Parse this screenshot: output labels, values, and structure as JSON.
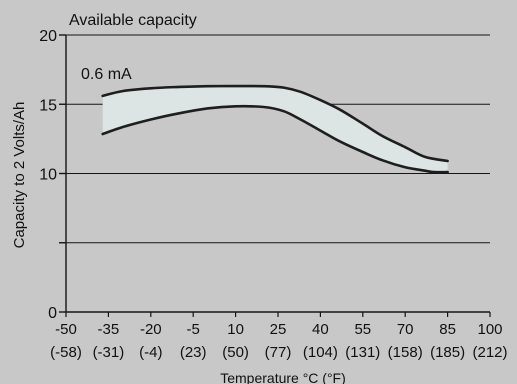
{
  "chart_data": {
    "type": "area",
    "title": "Available capacity",
    "xlabel": "Temperature  °C (°F)",
    "ylabel": "Capacity to 2 Volts/Ah",
    "xlim": [
      -50,
      100
    ],
    "ylim": [
      0,
      20
    ],
    "x_ticks": [
      -50,
      -35,
      -20,
      -5,
      10,
      25,
      40,
      55,
      70,
      85,
      100
    ],
    "x_tick_labels_top": [
      "-50",
      "-35",
      "-20",
      "-5",
      "10",
      "25",
      "40",
      "55",
      "70",
      "85",
      "100"
    ],
    "x_tick_labels_bottom": [
      "(-58)",
      "(-31)",
      "(-4)",
      "(23)",
      "(50)",
      "(77)",
      "(104)",
      "(131)",
      "(158)",
      "(185)",
      "(212)"
    ],
    "y_ticks": [
      0,
      5,
      10,
      15,
      20
    ],
    "y_tick_labels": [
      "0",
      "",
      "10",
      "15",
      "20"
    ],
    "grid": true,
    "annotation": "0.6 mA",
    "band_fill_color": "#dde4e4",
    "line_color": "#1e1e1e",
    "series": [
      {
        "x": [
          -37,
          -30,
          -20,
          -10,
          0,
          10,
          20,
          27,
          33,
          40,
          47,
          55,
          62,
          70,
          77,
          85
        ],
        "values": [
          15.6,
          15.95,
          16.15,
          16.25,
          16.3,
          16.32,
          16.3,
          16.2,
          15.9,
          15.3,
          14.6,
          13.6,
          12.7,
          11.9,
          11.2,
          10.9
        ]
      },
      {
        "x": [
          -37,
          -30,
          -20,
          -10,
          0,
          10,
          20,
          27,
          33,
          40,
          47,
          55,
          62,
          70,
          77,
          80,
          85
        ],
        "values": [
          12.85,
          13.35,
          13.9,
          14.35,
          14.7,
          14.85,
          14.8,
          14.5,
          13.9,
          13.1,
          12.3,
          11.55,
          10.95,
          10.45,
          10.2,
          10.1,
          10.1
        ]
      }
    ]
  }
}
